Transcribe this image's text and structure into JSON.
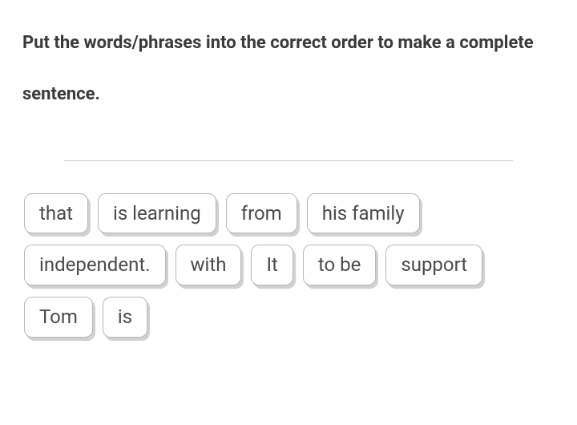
{
  "instruction": "Put the words/phrases into the correct order to make a complete sentence.",
  "tiles": [
    "that",
    "is learning",
    "from",
    "his family",
    "independent.",
    "with",
    "It",
    "to be",
    "support",
    "Tom",
    "is"
  ],
  "colors": {
    "text_primary": "#3a3a3a",
    "tile_text": "#4b4b4b",
    "tile_border": "#b8b8b8",
    "drop_line": "#c9c9c9",
    "background": "#ffffff",
    "tile_shadow": "rgba(0,0,0,0.18)"
  },
  "typography": {
    "instruction_fontsize": 22,
    "instruction_weight": 700,
    "tile_fontsize": 24
  }
}
